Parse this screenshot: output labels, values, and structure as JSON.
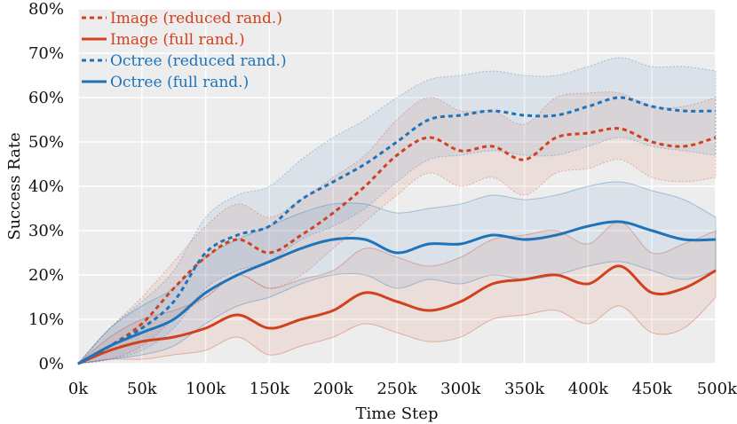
{
  "chart_data": {
    "type": "line",
    "title": "",
    "xlabel": "Time Step",
    "ylabel": "Success Rate",
    "xlim": [
      0,
      500000
    ],
    "ylim": [
      0,
      80
    ],
    "xticks": [
      {
        "value": 0,
        "label": "0k"
      },
      {
        "value": 50000,
        "label": "50k"
      },
      {
        "value": 100000,
        "label": "100k"
      },
      {
        "value": 150000,
        "label": "150k"
      },
      {
        "value": 200000,
        "label": "200k"
      },
      {
        "value": 250000,
        "label": "250k"
      },
      {
        "value": 300000,
        "label": "300k"
      },
      {
        "value": 350000,
        "label": "350k"
      },
      {
        "value": 400000,
        "label": "400k"
      },
      {
        "value": 450000,
        "label": "450k"
      },
      {
        "value": 500000,
        "label": "500k"
      }
    ],
    "yticks": [
      {
        "value": 0,
        "label": "0%"
      },
      {
        "value": 10,
        "label": "10%"
      },
      {
        "value": 20,
        "label": "20%"
      },
      {
        "value": 30,
        "label": "30%"
      },
      {
        "value": 40,
        "label": "40%"
      },
      {
        "value": 50,
        "label": "50%"
      },
      {
        "value": 60,
        "label": "60%"
      },
      {
        "value": 70,
        "label": "70%"
      },
      {
        "value": 80,
        "label": "80%"
      }
    ],
    "grid": true,
    "legend_position": "top-left",
    "x": [
      0,
      25000,
      50000,
      75000,
      100000,
      125000,
      150000,
      175000,
      200000,
      225000,
      250000,
      275000,
      300000,
      325000,
      350000,
      375000,
      400000,
      425000,
      450000,
      475000,
      500000
    ],
    "series": [
      {
        "name": "Image (reduced rand.)",
        "color": "#d2411e",
        "dash": "dashed",
        "values": [
          0,
          4,
          9,
          17,
          24,
          28,
          25,
          29,
          34,
          40,
          47,
          51,
          48,
          49,
          46,
          51,
          52,
          53,
          50,
          49,
          51
        ],
        "lower": [
          0,
          1,
          4,
          10,
          15,
          20,
          17,
          20,
          26,
          32,
          38,
          43,
          40,
          42,
          38,
          43,
          44,
          46,
          42,
          41,
          42
        ],
        "upper": [
          0,
          8,
          15,
          23,
          31,
          36,
          33,
          37,
          42,
          47,
          55,
          60,
          57,
          57,
          54,
          60,
          61,
          61,
          58,
          58,
          60
        ]
      },
      {
        "name": "Image (full rand.)",
        "color": "#d2411e",
        "dash": "solid",
        "values": [
          0,
          3,
          5,
          6,
          8,
          11,
          8,
          10,
          12,
          16,
          14,
          12,
          14,
          18,
          19,
          20,
          18,
          22,
          16,
          17,
          21
        ],
        "lower": [
          0,
          1,
          1,
          2,
          3,
          6,
          2,
          4,
          6,
          9,
          7,
          5,
          6,
          10,
          11,
          12,
          9,
          13,
          7,
          8,
          15
        ],
        "upper": [
          0,
          6,
          10,
          12,
          15,
          20,
          17,
          19,
          21,
          26,
          24,
          22,
          24,
          28,
          29,
          30,
          27,
          32,
          25,
          27,
          30
        ]
      },
      {
        "name": "Octree (reduced rand.)",
        "color": "#1e73b9",
        "dash": "dashed",
        "values": [
          0,
          4,
          8,
          14,
          25,
          29,
          31,
          37,
          41,
          45,
          50,
          55,
          56,
          57,
          56,
          56,
          58,
          60,
          58,
          57,
          57
        ],
        "lower": [
          0,
          1,
          3,
          8,
          17,
          21,
          23,
          28,
          31,
          35,
          41,
          46,
          47,
          48,
          47,
          47,
          49,
          51,
          49,
          48,
          47
        ],
        "upper": [
          0,
          8,
          14,
          21,
          33,
          38,
          40,
          46,
          51,
          55,
          60,
          64,
          65,
          66,
          65,
          65,
          67,
          69,
          67,
          67,
          66
        ]
      },
      {
        "name": "Octree (full rand.)",
        "color": "#1e73b9",
        "dash": "solid",
        "values": [
          0,
          4,
          7,
          10,
          16,
          20,
          23,
          26,
          28,
          28,
          25,
          27,
          27,
          29,
          28,
          29,
          31,
          32,
          30,
          28,
          28
        ],
        "lower": [
          0,
          1,
          2,
          4,
          9,
          13,
          15,
          18,
          20,
          20,
          17,
          19,
          18,
          20,
          19,
          20,
          22,
          23,
          21,
          19,
          21
        ],
        "upper": [
          0,
          8,
          13,
          17,
          24,
          28,
          31,
          34,
          36,
          36,
          34,
          35,
          36,
          38,
          37,
          38,
          40,
          41,
          39,
          37,
          33
        ]
      }
    ]
  }
}
